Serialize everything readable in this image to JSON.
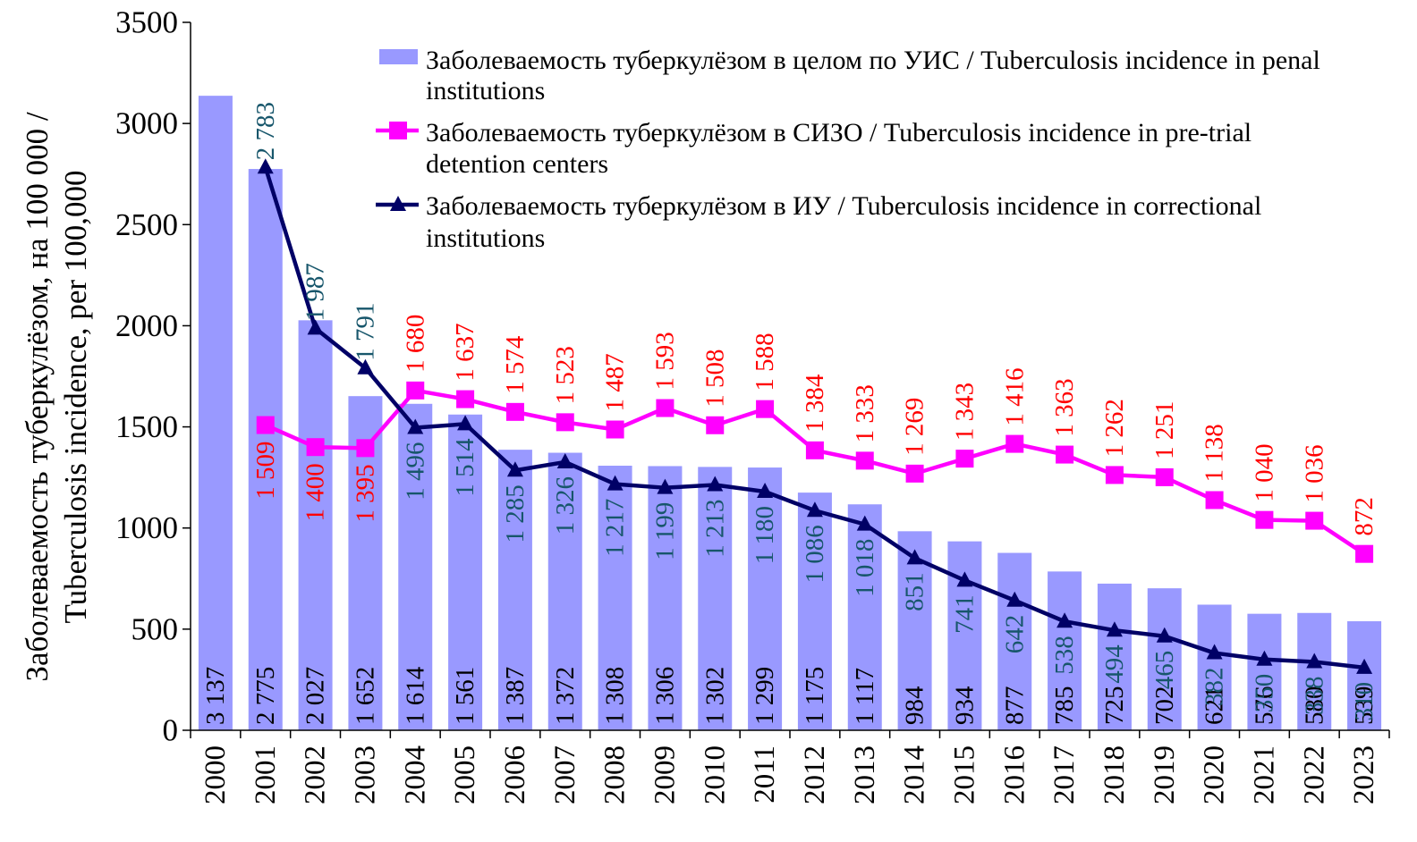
{
  "chart_data": {
    "type": "bar+line",
    "categories": [
      "2000",
      "2001",
      "2002",
      "2003",
      "2004",
      "2005",
      "2006",
      "2007",
      "2008",
      "2009",
      "2010",
      "2011",
      "2012",
      "2013",
      "2014",
      "2015",
      "2016",
      "2017",
      "2018",
      "2019",
      "2020",
      "2021",
      "2022",
      "2023"
    ],
    "series": [
      {
        "name": "Заболеваемость туберкулёзом в целом по УИС / Tuberculosis incidence in penal institutions",
        "type": "bar",
        "color": "#9999ff",
        "label_color": "#000000",
        "values": [
          3137,
          2775,
          2027,
          1652,
          1614,
          1561,
          1387,
          1372,
          1308,
          1306,
          1302,
          1299,
          1175,
          1117,
          984,
          934,
          877,
          785,
          725,
          702,
          621,
          576,
          580,
          539
        ],
        "labels": [
          "3 137",
          "2 775",
          "2 027",
          "1 652",
          "1 614",
          "1 561",
          "1 387",
          "1 372",
          "1 308",
          "1 306",
          "1 302",
          "1 299",
          "1 175",
          "1 117",
          "984",
          "934",
          "877",
          "785",
          "725",
          "702",
          "621",
          "576",
          "580",
          "539"
        ]
      },
      {
        "name": "Заболеваемость туберкулёзом в СИЗО / Tuberculosis incidence in pre-trial detention centers",
        "type": "line",
        "marker": "square",
        "color": "#ff00ff",
        "label_color": "#ff0000",
        "values": [
          null,
          1509,
          1400,
          1395,
          1680,
          1637,
          1574,
          1523,
          1487,
          1593,
          1508,
          1588,
          1384,
          1333,
          1269,
          1343,
          1416,
          1363,
          1262,
          1251,
          1138,
          1040,
          1036,
          872
        ],
        "labels": [
          null,
          "1 509",
          "1 400",
          "1 395",
          "1 680",
          "1 637",
          "1 574",
          "1 523",
          "1 487",
          "1 593",
          "1 508",
          "1 588",
          "1 384",
          "1 333",
          "1 269",
          "1 343",
          "1 416",
          "1 363",
          "1 262",
          "1 251",
          "1 138",
          "1 040",
          "1 036",
          "872"
        ]
      },
      {
        "name": "Заболеваемость туберкулёзом в ИУ / Tuberculosis incidence in correctional institutions",
        "type": "line",
        "marker": "triangle",
        "color": "#000066",
        "label_color": "#17566b",
        "values": [
          null,
          2783,
          1987,
          1791,
          1496,
          1514,
          1285,
          1326,
          1217,
          1199,
          1213,
          1180,
          1086,
          1018,
          851,
          741,
          642,
          538,
          494,
          465,
          382,
          350,
          338,
          310
        ],
        "labels": [
          null,
          "2 783",
          "1 987",
          "1 791",
          "1 496",
          "1 514",
          "1 285",
          "1 326",
          "1 217",
          "1 199",
          "1 213",
          "1 180",
          "1 086",
          "1 018",
          "851",
          "741",
          "642",
          "538",
          "494",
          "465",
          "382",
          "350",
          "338",
          "310"
        ]
      }
    ],
    "ylabel_line1": "Заболеваемость туберкулёзом, на 100 000 /",
    "ylabel_line2": "Tuberculosis incidence, per 100,000",
    "xlabel": "",
    "ylim": [
      0,
      3500
    ],
    "yticks": [
      0,
      500,
      1000,
      1500,
      2000,
      2500,
      3000,
      3500
    ],
    "ytick_labels": [
      "0",
      "500",
      "1000",
      "1500",
      "2000",
      "2500",
      "3000",
      "3500"
    ],
    "legend": [
      {
        "line1": "Заболеваемость туберкулёзом в целом по УИС / Tuberculosis incidence in penal",
        "line2": "institutions"
      },
      {
        "line1": "Заболеваемость туберкулёзом в СИЗО / Tuberculosis incidence in pre-trial",
        "line2": "detention centers"
      },
      {
        "line1": "Заболеваемость туберкулёзом в ИУ / Tuberculosis incidence in correctional",
        "line2": "institutions"
      }
    ],
    "legend_position": "top-right",
    "grid": false
  }
}
